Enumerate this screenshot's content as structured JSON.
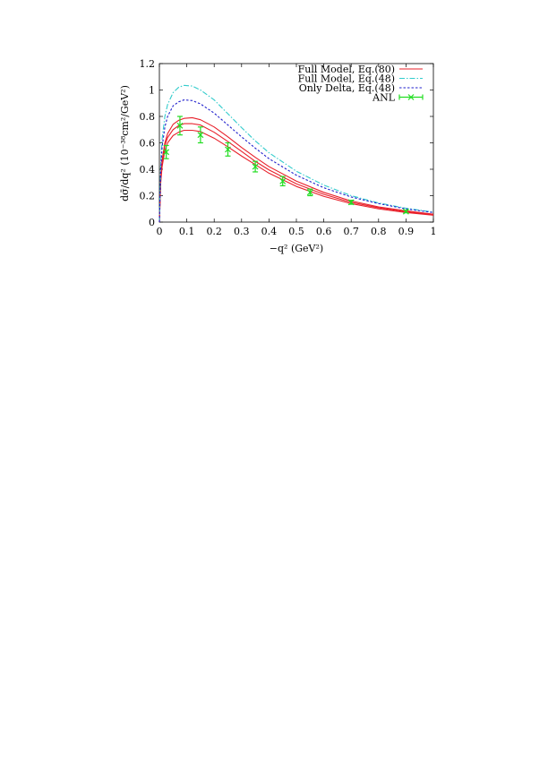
{
  "chart_data": {
    "type": "line",
    "xlabel": "−q² (GeV²)",
    "ylabel": "dσ̄/dq² (10⁻³⁸cm²/GeV²)",
    "xlim": [
      0,
      1
    ],
    "ylim": [
      0,
      1.2
    ],
    "x_ticks": [
      0,
      0.1,
      0.2,
      0.3,
      0.4,
      0.5,
      0.6,
      0.7,
      0.8,
      0.9,
      1
    ],
    "x_tick_labels": [
      "0",
      "0.1",
      "0.2",
      "0.3",
      "0.4",
      "0.5",
      "0.6",
      "0.7",
      "0.8",
      "0.9",
      "1"
    ],
    "y_ticks": [
      0,
      0.2,
      0.4,
      0.6,
      0.8,
      1,
      1.2
    ],
    "y_tick_labels": [
      "0",
      "0.2",
      "0.4",
      "0.6",
      "0.8",
      "1",
      "1.2"
    ],
    "grid": false,
    "legend_position": "top-right",
    "x": [
      0,
      0.005,
      0.01,
      0.02,
      0.03,
      0.05,
      0.07,
      0.09,
      0.12,
      0.15,
      0.2,
      0.25,
      0.3,
      0.35,
      0.4,
      0.5,
      0.6,
      0.7,
      0.8,
      0.9,
      1.0
    ],
    "series": [
      {
        "name": "Full Model, Eq.(80)",
        "style": "solid",
        "color": "#e8202a",
        "values": [
          0,
          0.34,
          0.47,
          0.6,
          0.67,
          0.74,
          0.77,
          0.785,
          0.79,
          0.775,
          0.72,
          0.645,
          0.565,
          0.49,
          0.42,
          0.31,
          0.225,
          0.16,
          0.115,
          0.085,
          0.06
        ]
      },
      {
        "style": "solid",
        "color": "#e8202a",
        "values": [
          0,
          0.32,
          0.45,
          0.58,
          0.64,
          0.7,
          0.73,
          0.745,
          0.745,
          0.735,
          0.68,
          0.61,
          0.535,
          0.46,
          0.395,
          0.29,
          0.21,
          0.15,
          0.108,
          0.078,
          0.056
        ]
      },
      {
        "style": "solid",
        "color": "#e8202a",
        "values": [
          0,
          0.3,
          0.42,
          0.54,
          0.6,
          0.655,
          0.68,
          0.695,
          0.695,
          0.685,
          0.635,
          0.57,
          0.5,
          0.435,
          0.37,
          0.27,
          0.195,
          0.14,
          0.1,
          0.072,
          0.052
        ]
      },
      {
        "name": "Full Model, Eq.(48)",
        "style": "dash-dot",
        "color": "#33cccc",
        "values": [
          0,
          0.45,
          0.63,
          0.8,
          0.89,
          0.98,
          1.02,
          1.035,
          1.03,
          1.0,
          0.925,
          0.82,
          0.715,
          0.615,
          0.525,
          0.385,
          0.28,
          0.2,
          0.145,
          0.105,
          0.075
        ]
      },
      {
        "name": "Only Delta, Eq.(48)",
        "style": "dotted",
        "color": "#1f1fcc",
        "values": [
          0,
          0.4,
          0.57,
          0.72,
          0.8,
          0.88,
          0.91,
          0.925,
          0.92,
          0.895,
          0.825,
          0.735,
          0.645,
          0.56,
          0.48,
          0.355,
          0.26,
          0.19,
          0.14,
          0.1,
          0.072
        ]
      }
    ],
    "points": {
      "name": "ANL",
      "color": "#22dd22",
      "data": [
        {
          "x": 0.025,
          "y": 0.53,
          "err": 0.05
        },
        {
          "x": 0.075,
          "y": 0.73,
          "err": 0.07
        },
        {
          "x": 0.15,
          "y": 0.66,
          "err": 0.06
        },
        {
          "x": 0.25,
          "y": 0.55,
          "err": 0.05
        },
        {
          "x": 0.35,
          "y": 0.42,
          "err": 0.04
        },
        {
          "x": 0.45,
          "y": 0.31,
          "err": 0.035
        },
        {
          "x": 0.55,
          "y": 0.225,
          "err": 0.025
        },
        {
          "x": 0.7,
          "y": 0.15,
          "err": 0.015
        },
        {
          "x": 0.9,
          "y": 0.08,
          "err": 0.01
        }
      ]
    }
  }
}
